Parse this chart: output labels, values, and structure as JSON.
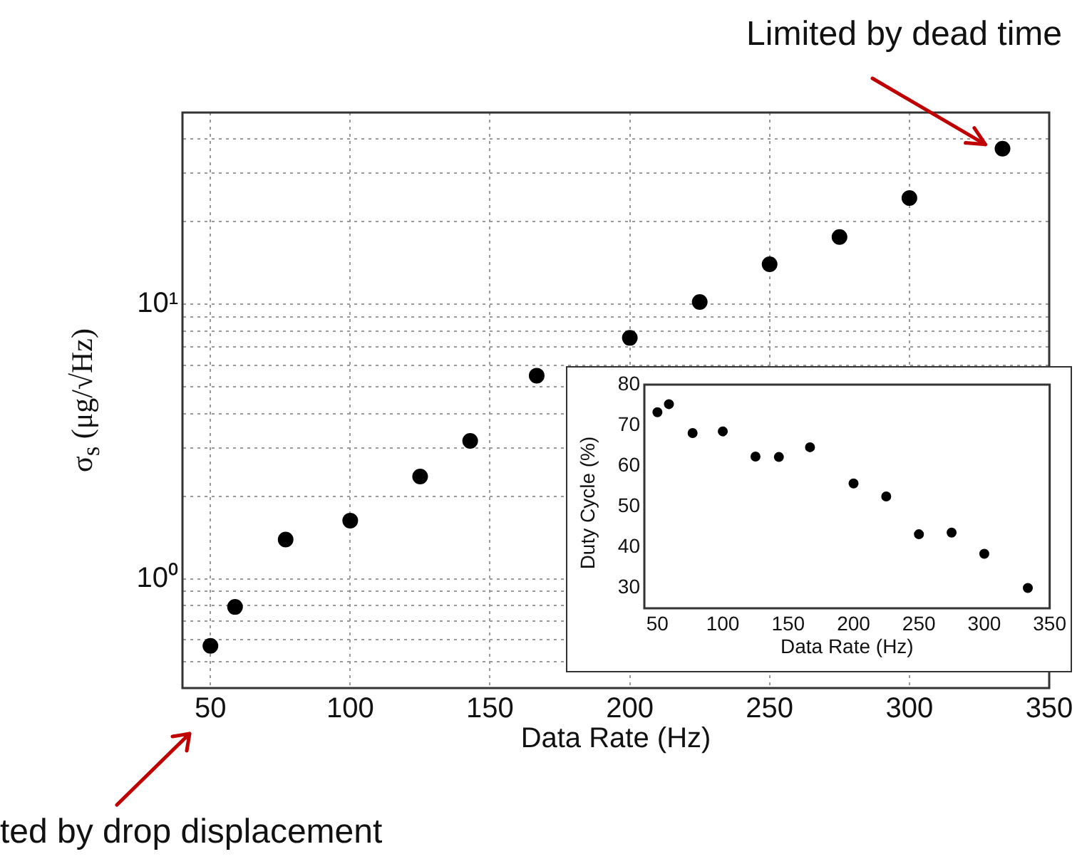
{
  "chart_data": [
    {
      "type": "scatter",
      "xlabel": "Data Rate (Hz)",
      "ylabel": "σ$_{s}$ (μg/√Hz)",
      "color": "#000000",
      "marker": "circle",
      "log": "y",
      "grid": true,
      "x": [
        50,
        58.8,
        76.9,
        100,
        125,
        142.9,
        166.7,
        200,
        225,
        250,
        275,
        300,
        333.3
      ],
      "values": [
        0.57,
        0.79,
        1.39,
        1.63,
        2.36,
        3.18,
        5.5,
        7.55,
        10.2,
        14.0,
        17.6,
        24.4,
        36.9
      ],
      "xlim": [
        40,
        350
      ],
      "xticks": [
        50,
        100,
        150,
        200,
        250,
        300,
        350
      ],
      "ylim": [
        0.4,
        50
      ],
      "yticks": [
        {
          "value": 0.4,
          "label": null
        },
        {
          "value": 0.5,
          "label": null
        },
        {
          "value": 0.6,
          "label": null
        },
        {
          "value": 0.7,
          "label": null
        },
        {
          "value": 0.8,
          "label": null
        },
        {
          "value": 0.9,
          "label": null
        },
        {
          "value": 1,
          "label": "10⁰"
        },
        {
          "value": 2,
          "label": null
        },
        {
          "value": 3,
          "label": null
        },
        {
          "value": 4,
          "label": null
        },
        {
          "value": 5,
          "label": null
        },
        {
          "value": 6,
          "label": null
        },
        {
          "value": 7,
          "label": null
        },
        {
          "value": 8,
          "label": null
        },
        {
          "value": 9,
          "label": null
        },
        {
          "value": 10,
          "label": "10¹"
        },
        {
          "value": 20,
          "label": null
        },
        {
          "value": 30,
          "label": null
        },
        {
          "value": 40,
          "label": null
        },
        {
          "value": 50,
          "label": null
        }
      ],
      "annotations": [
        {
          "text": "Limited by dead time",
          "x": 333.3,
          "y": 36.9
        },
        "ted by drop displacement"
      ]
    },
    {
      "type": "scatter",
      "xlabel": "Data Rate (Hz)",
      "ylabel": "Duty Cycle (%)",
      "color": "#000000",
      "marker": "circle",
      "x": [
        50,
        58.8,
        76.9,
        100,
        125,
        142.9,
        166.7,
        200,
        225,
        250,
        275,
        300,
        333.3
      ],
      "values": [
        73.2,
        75.2,
        68.1,
        68.5,
        62.3,
        62.2,
        64.6,
        55.7,
        52.5,
        43.2,
        43.6,
        38.4,
        30.0
      ],
      "xlim": [
        40,
        350
      ],
      "xticks": [
        50,
        100,
        150,
        200,
        250,
        300,
        350
      ],
      "ylim": [
        25,
        80
      ],
      "yticks": [
        30,
        40,
        50,
        60,
        70,
        80
      ]
    }
  ]
}
